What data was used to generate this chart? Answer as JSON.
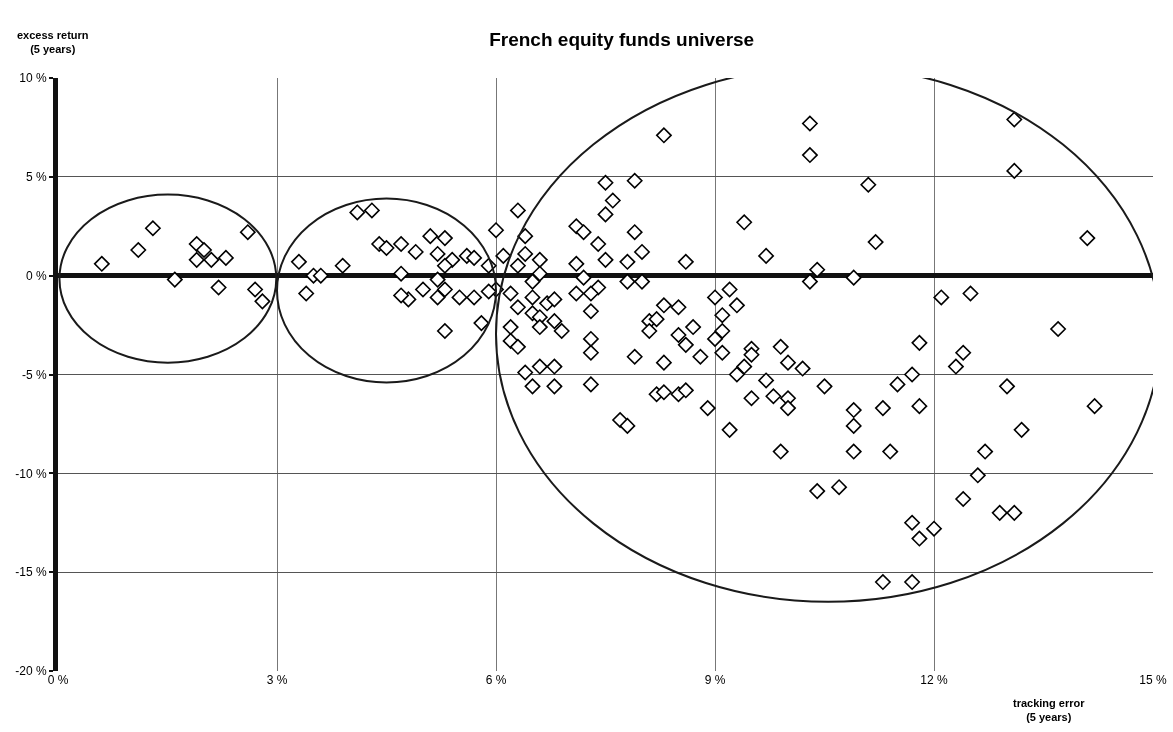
{
  "chart_data": {
    "type": "scatter",
    "title": "French equity funds universe",
    "xlabel": "tracking error\n(5 years)",
    "ylabel": "excess return\n(5 years)",
    "x": [
      0.6,
      1.1,
      1.3,
      1.9,
      1.9,
      2.0,
      2.1,
      2.3,
      2.6,
      1.6,
      2.2,
      2.7,
      2.8,
      3.3,
      3.5,
      3.6,
      3.4,
      3.9,
      4.1,
      4.3,
      4.4,
      4.5,
      4.7,
      4.9,
      5.1,
      5.3,
      5.2,
      5.4,
      5.3,
      5.6,
      5.7,
      5.9,
      6.0,
      4.7,
      5.2,
      5.0,
      4.8,
      4.7,
      5.2,
      5.3,
      5.5,
      5.7,
      5.8,
      5.3,
      6.0,
      6.3,
      6.4,
      6.4,
      6.3,
      6.5,
      6.2,
      6.3,
      6.5,
      6.2,
      6.2,
      6.3,
      6.6,
      6.6,
      5.9,
      6.1,
      6.5,
      6.7,
      6.8,
      6.6,
      6.8,
      6.6,
      6.9,
      6.4,
      6.6,
      6.8,
      6.5,
      6.8,
      7.1,
      7.2,
      7.4,
      7.5,
      7.5,
      7.9,
      7.6,
      7.5,
      8.3,
      7.9,
      8.0,
      7.8,
      8.6,
      7.1,
      7.2,
      7.8,
      8.0,
      7.4,
      7.1,
      7.3,
      7.3,
      7.3,
      7.3,
      7.3,
      8.1,
      8.3,
      8.2,
      8.5,
      8.1,
      8.5,
      8.7,
      8.6,
      8.8,
      7.9,
      8.3,
      8.2,
      8.3,
      8.5,
      8.6,
      7.7,
      7.8,
      10.3,
      10.3,
      11.1,
      11.2,
      9.4,
      9.7,
      10.4,
      10.3,
      10.9,
      9.0,
      9.2,
      9.3,
      9.1,
      9.1,
      9.0,
      9.9,
      9.5,
      11.8,
      13.1,
      13.1,
      14.1,
      12.1,
      12.5,
      13.7,
      12.4,
      9.1,
      9.5,
      10.0,
      9.4,
      9.3,
      10.2,
      9.7,
      10.5,
      11.7,
      11.5,
      12.3,
      9.8,
      10.0,
      9.5,
      10.0,
      8.9,
      9.2,
      10.9,
      10.9,
      11.3,
      11.8,
      13.0,
      14.2,
      13.2,
      9.9,
      10.9,
      11.4,
      12.7,
      12.6,
      10.4,
      10.7,
      12.4,
      12.9,
      13.1,
      11.7,
      12.0,
      11.8,
      11.3,
      11.7
    ],
    "values": [
      0.6,
      1.3,
      2.4,
      1.6,
      0.8,
      1.3,
      0.8,
      0.9,
      2.2,
      -0.2,
      -0.6,
      -0.7,
      -1.3,
      0.7,
      0.0,
      0.0,
      -0.9,
      0.5,
      3.2,
      3.3,
      1.6,
      1.4,
      1.6,
      1.2,
      2.0,
      1.9,
      1.1,
      0.8,
      0.5,
      1.0,
      0.9,
      0.5,
      2.3,
      0.1,
      -0.2,
      -0.7,
      -1.2,
      -1.0,
      -1.1,
      -0.7,
      -1.1,
      -1.1,
      -2.4,
      -2.8,
      -0.7,
      3.3,
      2.0,
      1.1,
      0.5,
      -0.3,
      -0.9,
      -1.6,
      -1.9,
      -2.6,
      -3.3,
      -3.6,
      0.8,
      0.1,
      -0.8,
      1.0,
      -1.1,
      -1.4,
      -1.2,
      -2.1,
      -2.3,
      -2.6,
      -2.8,
      -4.9,
      -4.6,
      -4.6,
      -5.6,
      -5.6,
      2.5,
      2.2,
      1.6,
      0.8,
      4.7,
      4.8,
      3.8,
      3.1,
      7.1,
      2.2,
      1.2,
      0.7,
      0.7,
      0.6,
      -0.1,
      -0.3,
      -0.3,
      -0.6,
      -0.9,
      -0.9,
      -1.8,
      -3.2,
      -3.9,
      -5.5,
      -2.3,
      -1.5,
      -2.2,
      -1.6,
      -2.8,
      -3.0,
      -2.6,
      -3.5,
      -4.1,
      -4.1,
      -4.4,
      -6.0,
      -5.9,
      -6.0,
      -5.8,
      -7.3,
      -7.6,
      7.7,
      6.1,
      4.6,
      1.7,
      2.7,
      1.0,
      0.3,
      -0.3,
      -0.1,
      -1.1,
      -0.7,
      -1.5,
      -2.0,
      -2.8,
      -3.2,
      -3.6,
      -3.7,
      -3.4,
      7.9,
      5.3,
      1.9,
      -1.1,
      -0.9,
      -2.7,
      -3.9,
      -3.9,
      -4.0,
      -4.4,
      -4.6,
      -5.0,
      -4.7,
      -5.3,
      -5.6,
      -5.0,
      -5.5,
      -4.6,
      -6.1,
      -6.2,
      -6.2,
      -6.7,
      -6.7,
      -7.8,
      -6.8,
      -7.6,
      -6.7,
      -6.6,
      -5.6,
      -6.6,
      -7.8,
      -8.9,
      -8.9,
      -8.9,
      -8.9,
      -10.1,
      -10.9,
      -10.7,
      -11.3,
      -12.0,
      -12.0,
      -12.5,
      -12.8,
      -13.3,
      -15.5,
      -15.5
    ],
    "color": "#ffffff",
    "marker": "diamond",
    "grid": true,
    "xlim": [
      0,
      15
    ],
    "xticks": [
      {
        "value": 0,
        "label": "0 %"
      },
      {
        "value": 3,
        "label": "3 %"
      },
      {
        "value": 6,
        "label": "6 %"
      },
      {
        "value": 9,
        "label": "9 %"
      },
      {
        "value": 12,
        "label": "12 %"
      },
      {
        "value": 15,
        "label": "15 %"
      }
    ],
    "ylim": [
      -20,
      10
    ],
    "yticks": [
      {
        "value": -20,
        "label": "-20 %"
      },
      {
        "value": -15,
        "label": "-15 %"
      },
      {
        "value": -10,
        "label": "-10 %"
      },
      {
        "value": -5,
        "label": "-5 %"
      },
      {
        "value": 0,
        "label": "0 %"
      },
      {
        "value": 5,
        "label": "5 %"
      },
      {
        "value": 10,
        "label": "10 %"
      }
    ]
  }
}
